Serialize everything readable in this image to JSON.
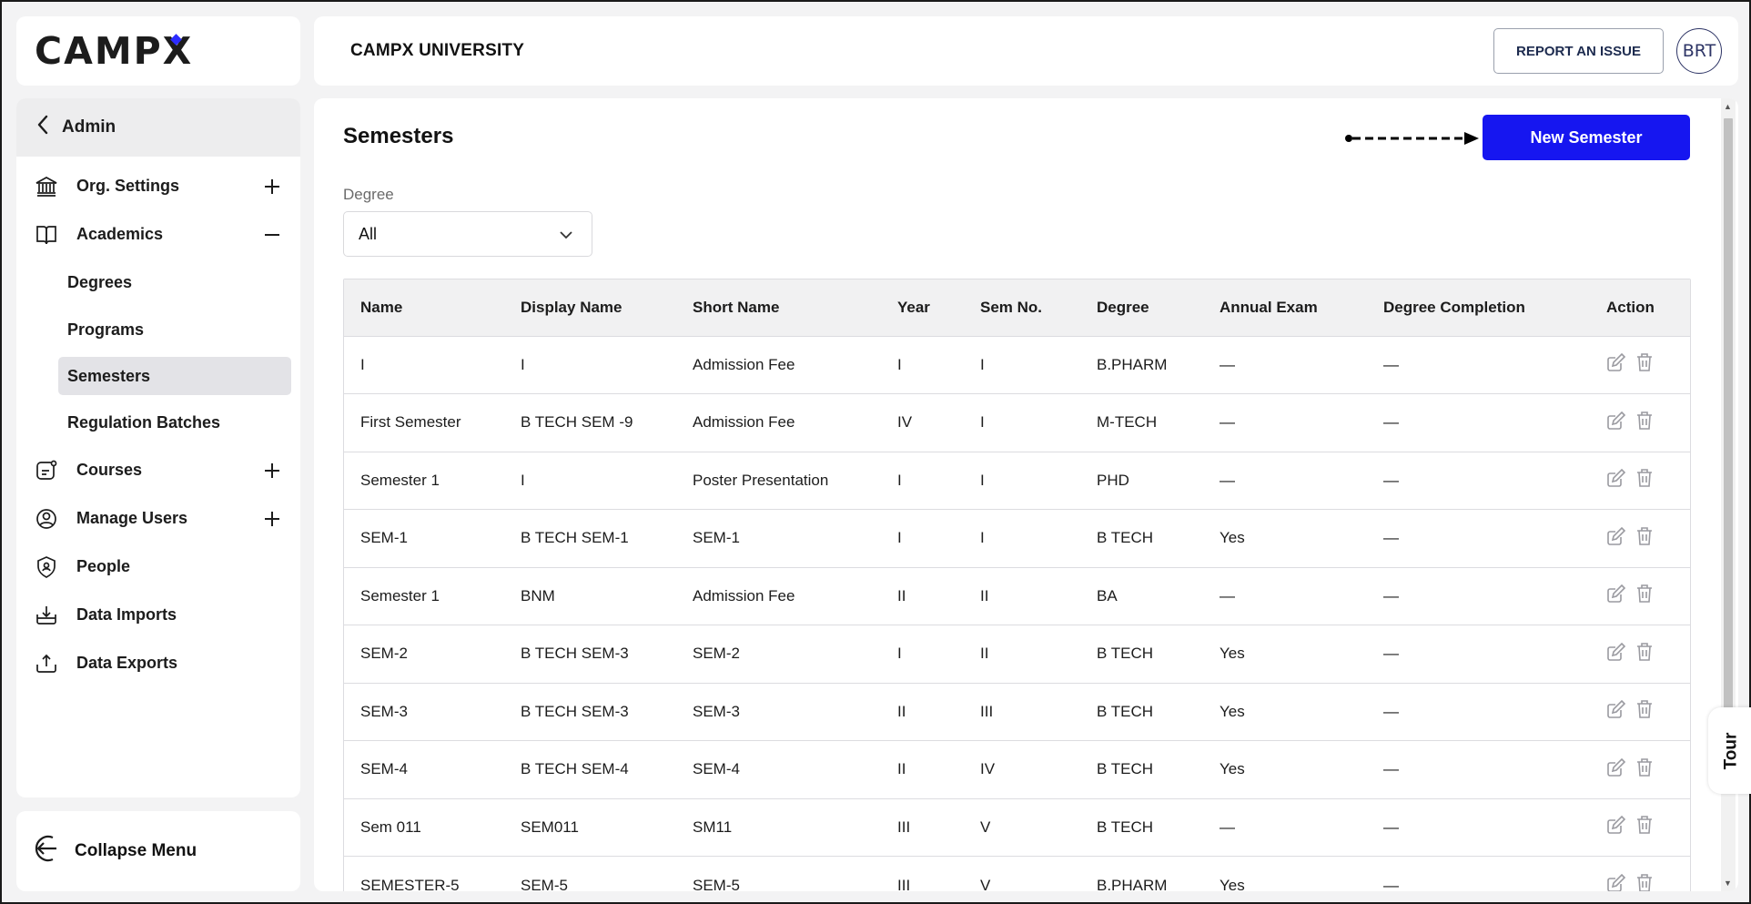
{
  "logo": {
    "text": "CAMP",
    "x_letter": "X"
  },
  "header": {
    "title": "CAMPX UNIVERSITY",
    "report_label": "REPORT AN ISSUE",
    "avatar_initials": "BRT"
  },
  "sidebar": {
    "back_label": "Admin",
    "items": [
      {
        "label": "Org. Settings",
        "toggle": "+"
      },
      {
        "label": "Academics",
        "toggle": "−"
      },
      {
        "label": "Courses",
        "toggle": "+"
      },
      {
        "label": "Manage Users",
        "toggle": "+"
      },
      {
        "label": "People"
      },
      {
        "label": "Data Imports"
      },
      {
        "label": "Data Exports"
      }
    ],
    "academics_sub": [
      "Degrees",
      "Programs",
      "Semesters",
      "Regulation Batches"
    ],
    "collapse_label": "Collapse Menu"
  },
  "main": {
    "title": "Semesters",
    "new_button": "New Semester",
    "filter_label": "Degree",
    "filter_value": "All",
    "columns": [
      "Name",
      "Display Name",
      "Short Name",
      "Year",
      "Sem No.",
      "Degree",
      "Annual Exam",
      "Degree Completion",
      "Action"
    ],
    "rows": [
      [
        "I",
        "I",
        "Admission Fee",
        "I",
        "I",
        "B.PHARM",
        "—",
        "—"
      ],
      [
        "First Semester",
        "B TECH SEM -9",
        "Admission Fee",
        "IV",
        "I",
        "M-TECH",
        "—",
        "—"
      ],
      [
        "Semester 1",
        "I",
        "Poster Presentation",
        "I",
        "I",
        "PHD",
        "—",
        "—"
      ],
      [
        "SEM-1",
        "B TECH SEM-1",
        "SEM-1",
        "I",
        "I",
        "B TECH",
        "Yes",
        "—"
      ],
      [
        "Semester 1",
        "BNM",
        "Admission Fee",
        "II",
        "II",
        "BA",
        "—",
        "—"
      ],
      [
        "SEM-2",
        "B TECH SEM-3",
        "SEM-2",
        "I",
        "II",
        "B TECH",
        "Yes",
        "—"
      ],
      [
        "SEM-3",
        "B TECH SEM-3",
        "SEM-3",
        "II",
        "III",
        "B TECH",
        "Yes",
        "—"
      ],
      [
        "SEM-4",
        "B TECH SEM-4",
        "SEM-4",
        "II",
        "IV",
        "B TECH",
        "Yes",
        "—"
      ],
      [
        "Sem 011",
        "SEM011",
        "SM11",
        "III",
        "V",
        "B TECH",
        "—",
        "—"
      ],
      [
        "SEMESTER-5",
        "SEM-5",
        "SEM-5",
        "III",
        "V",
        "B.PHARM",
        "Yes",
        "—"
      ]
    ]
  },
  "tour_label": "Tour",
  "colors": {
    "primary": "#1616f0",
    "active_bg": "#e3e3e7",
    "logo_accent": "#2c2cff"
  }
}
